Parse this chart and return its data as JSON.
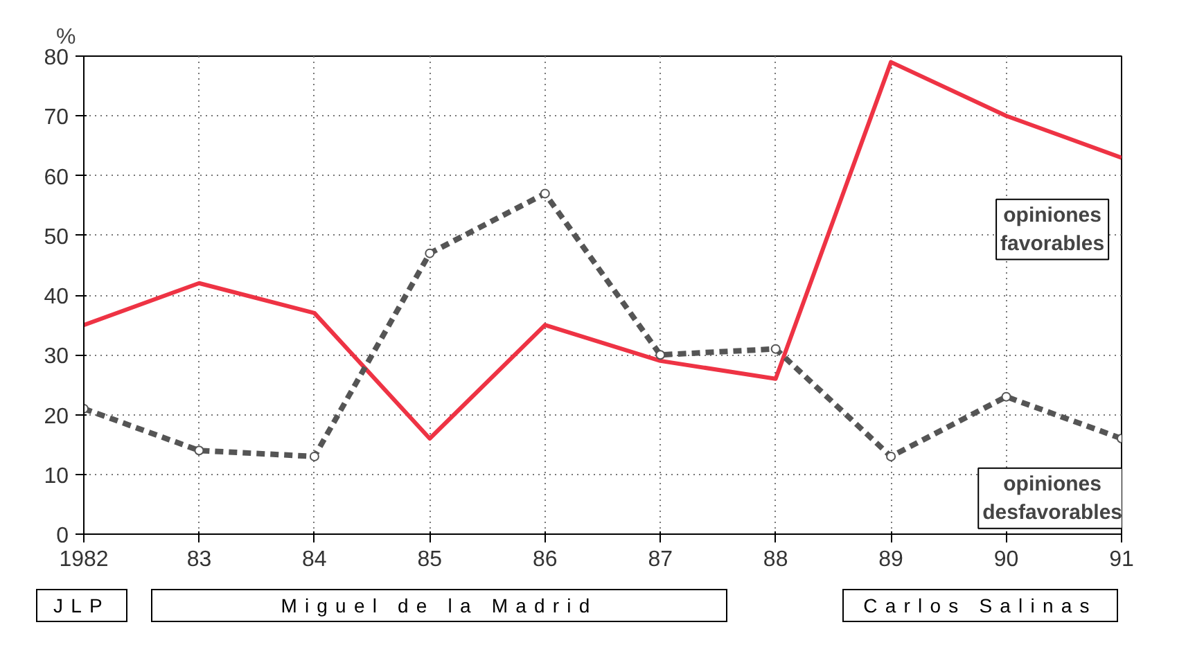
{
  "chart_data": {
    "type": "line",
    "ylabel": "%",
    "categories": [
      "1982",
      "83",
      "84",
      "85",
      "86",
      "87",
      "88",
      "89",
      "90",
      "91"
    ],
    "ylim": [
      0,
      80
    ],
    "yticks": [
      0,
      10,
      20,
      30,
      40,
      50,
      60,
      70,
      80
    ],
    "grid": true,
    "series": [
      {
        "name": "opiniones favorables",
        "color": "#ee3344",
        "line_style": "solid",
        "marker": "none",
        "values": [
          35,
          42,
          37,
          16,
          35,
          29,
          26,
          79,
          70,
          63
        ]
      },
      {
        "name": "opiniones desfavorables",
        "color": "#555555",
        "line_style": "dashed",
        "marker": "circle",
        "values": [
          21,
          14,
          13,
          47,
          57,
          30,
          31,
          13,
          23,
          16
        ]
      }
    ],
    "annotations": [
      "JLP",
      "Miguel de la Madrid",
      "Carlos Salinas"
    ]
  }
}
